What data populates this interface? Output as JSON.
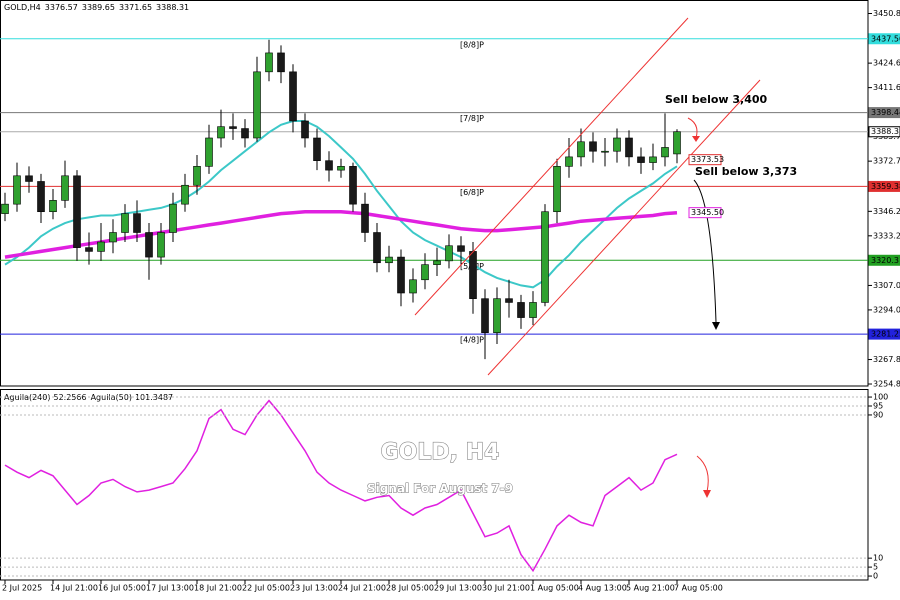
{
  "chart_data": [
    {
      "type": "candlestick",
      "symbol": "GOLD,H4",
      "header_values": [
        3376.57,
        3389.65,
        3371.65,
        3388.31
      ],
      "annotations": [
        "Sell below 3,400",
        "Sell below 3,373",
        "GOLD, H4",
        "Signal For August 7-9"
      ],
      "categories": [
        "2 Jul 2025",
        null,
        null,
        null,
        "14 Jul 21:00",
        null,
        null,
        null,
        "16 Jul 05:00",
        null,
        null,
        null,
        "17 Jul 13:00",
        null,
        null,
        null,
        "18 Jul 21:00",
        null,
        null,
        null,
        "22 Jul 05:00",
        null,
        null,
        null,
        "23 Jul 13:00",
        null,
        null,
        null,
        "24 Jul 21:00",
        null,
        null,
        null,
        "28 Jul 05:00",
        null,
        null,
        null,
        "29 Jul 13:00",
        null,
        null,
        null,
        "30 Jul 21:00",
        null,
        null,
        null,
        "1 Aug 05:00",
        null,
        null,
        null,
        "4 Aug 13:00",
        null,
        null,
        null,
        "5 Aug 21:00",
        null,
        null,
        null,
        "7 Aug 05:00"
      ],
      "open": [
        3345,
        3350,
        3365,
        3362,
        3346,
        3352,
        3365,
        3327,
        3325,
        3330,
        3335,
        3345,
        3335,
        3322,
        3335,
        3350,
        3360,
        3370,
        3385,
        3391,
        3390,
        3385,
        3420,
        3430,
        3420,
        3394,
        3385,
        3373,
        3368,
        3370,
        3350,
        3335,
        3319,
        3322,
        3303,
        3310,
        3318,
        3320,
        3328,
        3325,
        3300,
        3282,
        3300,
        3298,
        3290,
        3298,
        3346,
        3370,
        3375,
        3383,
        3378,
        3378,
        3385,
        3375,
        3372,
        3375,
        3376.57
      ],
      "high": [
        3356,
        3372,
        3370,
        3366,
        3358,
        3373,
        3368,
        3335,
        3340,
        3342,
        3350,
        3352,
        3340,
        3340,
        3356,
        3366,
        3376,
        3392,
        3400,
        3398,
        3395,
        3428,
        3437,
        3434,
        3424,
        3398,
        3390,
        3378,
        3374,
        3372,
        3356,
        3340,
        3328,
        3326,
        3316,
        3324,
        3327,
        3334,
        3333,
        3330,
        3305,
        3306,
        3310,
        3302,
        3304,
        3350,
        3374,
        3385,
        3390,
        3388,
        3385,
        3390,
        3389,
        3380,
        3382,
        3398,
        3389.65
      ],
      "low": [
        3341,
        3346,
        3356,
        3340,
        3342,
        3348,
        3320,
        3318,
        3320,
        3324,
        3330,
        3330,
        3310,
        3318,
        3330,
        3346,
        3355,
        3366,
        3380,
        3384,
        3380,
        3383,
        3415,
        3414,
        3388,
        3380,
        3368,
        3362,
        3364,
        3346,
        3330,
        3314,
        3314,
        3296,
        3298,
        3305,
        3312,
        3316,
        3318,
        3292,
        3268,
        3276,
        3290,
        3284,
        3286,
        3296,
        3340,
        3364,
        3370,
        3372,
        3370,
        3372,
        3370,
        3366,
        3368,
        3370,
        3371.65
      ],
      "close": [
        3350,
        3365,
        3362,
        3346,
        3352,
        3365,
        3327,
        3325,
        3330,
        3335,
        3345,
        3335,
        3322,
        3335,
        3350,
        3360,
        3370,
        3385,
        3391,
        3390,
        3385,
        3420,
        3430,
        3420,
        3394,
        3385,
        3373,
        3368,
        3370,
        3350,
        3335,
        3319,
        3322,
        3303,
        3310,
        3318,
        3320,
        3328,
        3325,
        3300,
        3282,
        3300,
        3298,
        3290,
        3298,
        3346,
        3370,
        3375,
        3383,
        3378,
        3378,
        3385,
        3375,
        3372,
        3375,
        3380,
        3388.31
      ],
      "up_color": "#2fa12f",
      "down_color": "#1a1a1a",
      "overlays": [
        {
          "color": "#3cc8c8",
          "width": 2,
          "values": [
            3318,
            3322,
            3327,
            3333,
            3337,
            3340,
            3342,
            3343,
            3344,
            3344,
            3345,
            3346,
            3347,
            3348,
            3350,
            3353,
            3357,
            3362,
            3368,
            3373,
            3378,
            3383,
            3388,
            3392,
            3394,
            3394,
            3391,
            3386,
            3380,
            3374,
            3366,
            3357,
            3349,
            3341,
            3335,
            3331,
            3328,
            3325,
            3322,
            3318,
            3314,
            3311,
            3309,
            3307,
            3306,
            3310,
            3317,
            3323,
            3330,
            3336,
            3342,
            3348,
            3353,
            3357,
            3361,
            3366,
            3370
          ]
        },
        {
          "color": "#e020e0",
          "width": 3.5,
          "values": [
            3322,
            3323,
            3324,
            3325,
            3326,
            3327,
            3328,
            3329,
            3330,
            3331,
            3332,
            3333,
            3334,
            3335,
            3336,
            3337,
            3338,
            3339,
            3340,
            3341,
            3342,
            3343,
            3344,
            3345,
            3345.5,
            3346,
            3346,
            3346,
            3346,
            3345.5,
            3345,
            3344,
            3343,
            3342,
            3341,
            3340,
            3339,
            3338,
            3337,
            3336.5,
            3336,
            3336,
            3336.5,
            3337,
            3337.5,
            3338,
            3339,
            3340,
            3341,
            3341.5,
            3342,
            3342.5,
            3343,
            3343.5,
            3344,
            3345,
            3345.5
          ]
        }
      ],
      "ylim": [
        3253.8,
        3458
      ],
      "yticks": [
        3450.85,
        {
          "value": 3424.6,
          "label": "3424.60"
        },
        3411.65,
        {
          "value": 3385.7,
          "label": "3385.70"
        },
        3372.75,
        {
          "value": 3346.2,
          "label": "3346.20"
        },
        3333.25,
        {
          "value": 3307,
          "label": "3307.00"
        },
        3294.05,
        {
          "value": 3267.8,
          "label": "3267.80"
        },
        3254.85
      ],
      "levels": [
        {
          "name": "[8/8]P",
          "value": 3437.5,
          "label": "3437.50",
          "color": "#33dddd"
        },
        {
          "name": "[7/8]P",
          "value": 3398.44,
          "color": "#777777"
        },
        {
          "name": "[6/8]P",
          "value": 3359.38,
          "color": "#e03030"
        },
        {
          "name": "[5/8]P",
          "value": 3320.31,
          "color": "#22a022"
        },
        {
          "name": "[4/8]P",
          "value": 3281.25,
          "color": "#2222dd"
        }
      ],
      "current_price": 3388.31,
      "markers": [
        {
          "value": 3373.53,
          "color": "#e03030"
        },
        {
          "value": 3345.5,
          "label": "3345.50",
          "color": "#e020e0"
        }
      ]
    },
    {
      "type": "line",
      "legend": [
        {
          "name": "Aguila(240)",
          "value": 52.2566
        },
        {
          "name": "Aguila(50)",
          "value": 101.3487
        }
      ],
      "color": "#e020e0",
      "values": [
        62,
        58,
        55,
        59,
        56,
        48,
        40,
        45,
        52,
        54,
        50,
        47,
        48,
        50,
        52,
        60,
        70,
        88,
        93,
        82,
        79,
        90,
        98,
        90,
        80,
        70,
        58,
        52,
        48,
        45,
        42,
        44,
        45,
        38,
        34,
        38,
        40,
        44,
        48,
        35,
        22,
        24,
        28,
        12,
        3,
        15,
        28,
        34,
        30,
        28,
        45,
        50,
        55,
        48,
        52,
        65,
        68
      ],
      "ylim": [
        -2.2,
        104.5
      ],
      "yticks": [
        100,
        95,
        90,
        10,
        5,
        0
      ]
    }
  ]
}
